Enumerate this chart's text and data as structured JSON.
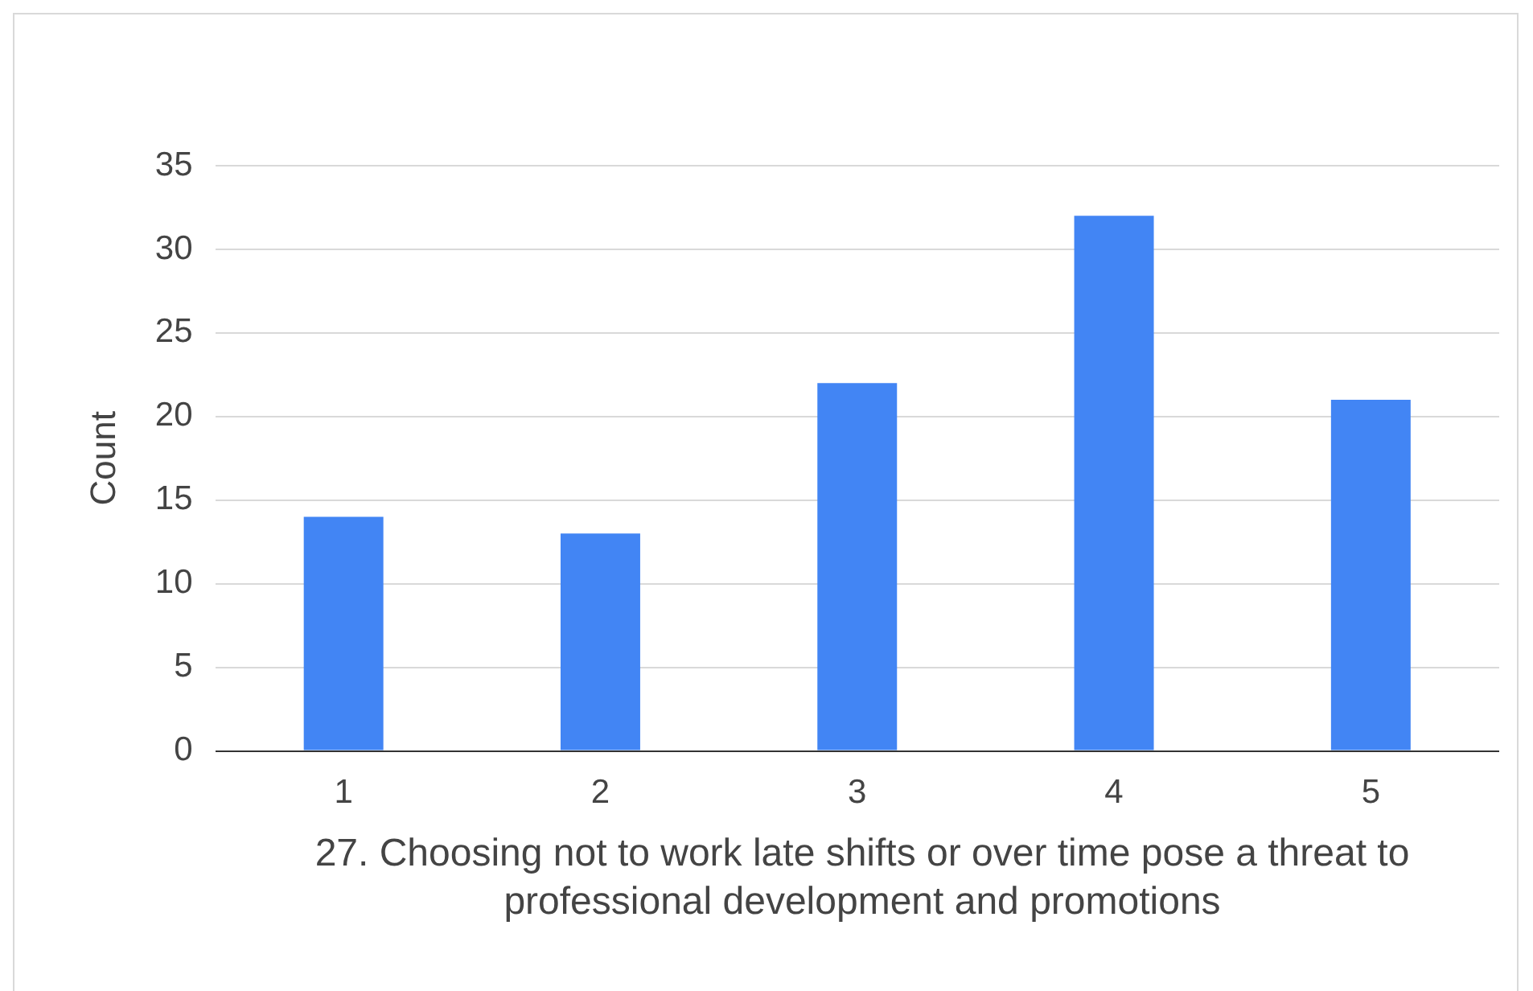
{
  "chart_data": {
    "type": "bar",
    "categories": [
      "1",
      "2",
      "3",
      "4",
      "5"
    ],
    "values": [
      14,
      13,
      22,
      32,
      21
    ],
    "color": "#4285f4",
    "ylabel": "Count",
    "xlabel": "27. Choosing not to work late shifts or over time pose a threat to professional development  and promotions",
    "ylim": [
      0,
      35
    ],
    "yticks": [
      0,
      5,
      10,
      15,
      20,
      25,
      30,
      35
    ],
    "grid": "y",
    "legend": false
  }
}
